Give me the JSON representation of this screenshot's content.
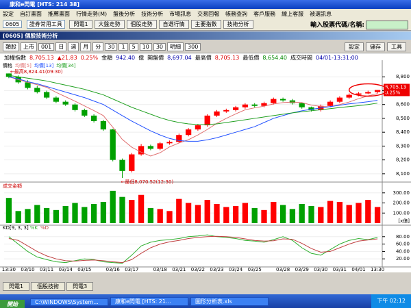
{
  "window": {
    "title": "康和e閃電 [HTS: 214 38]"
  },
  "menu": [
    "設定",
    "自訂畫面",
    "推薦畫面",
    "行情走勢(M)",
    "盤後分析",
    "技術分析",
    "市場訊息",
    "交易回報",
    "帳務查詢",
    "客戶服務",
    "線上客服",
    "被選訊息"
  ],
  "toolbar": {
    "stock_no": "0605",
    "tool_group": "證券常用工具",
    "buttons": [
      "閃電1",
      "大盤走勢",
      "個股走勢",
      "自選行情",
      "主要指數",
      "技術分析"
    ],
    "search_label": "輸入股票代碼/名稱:"
  },
  "panel": {
    "title": "[0605] 個股技術分析",
    "controls": [
      "類股",
      "上市",
      "001",
      "日",
      "週",
      "月",
      "分",
      "30",
      "1",
      "5",
      "10",
      "30",
      "明細",
      "300"
    ],
    "right_buttons": [
      "設定",
      "儲存",
      "工具"
    ]
  },
  "quote": {
    "name": "加權指數",
    "price": "8,705.13",
    "change": "▲21.83",
    "change_pct": "0.25%",
    "amount_label": "金額",
    "amount": "942.40",
    "amount_unit": "億",
    "open_label": "開盤價",
    "open": "8,697.04",
    "high_label": "最高價",
    "high": "8,705.13",
    "low_label": "最低價",
    "low": "8,654.40",
    "time_label": "成交時間",
    "time": "04/01-13:31:00"
  },
  "chart_data": [
    {
      "type": "candlestick",
      "legend_label": "價格",
      "up_color": "#ff0000",
      "down_color": "#00a000",
      "categories": [
        "13:30",
        null,
        "03/10",
        null,
        "03/11",
        null,
        "03/14",
        null,
        "03/15",
        null,
        null,
        "03/16",
        null,
        "03/17",
        null,
        null,
        "03/18",
        null,
        "03/21",
        null,
        "03/22",
        null,
        "03/23",
        null,
        "03/24",
        null,
        "03/25",
        null,
        null,
        "03/28",
        null,
        "03/29",
        null,
        "03/30",
        null,
        "03/31",
        null,
        "04/01",
        null,
        "13:30"
      ],
      "open": [
        8824,
        8800,
        8760,
        8720,
        8690,
        8650,
        8620,
        8600,
        8560,
        8520,
        8480,
        8420,
        8200,
        8120,
        8240,
        8300,
        8280,
        8320,
        8330,
        8380,
        8420,
        8450,
        8520,
        8550,
        8560,
        8580,
        8600,
        8590,
        8610,
        8640,
        8630,
        8610,
        8580,
        8560,
        8590,
        8620,
        8650,
        8670,
        8680,
        8690
      ],
      "high": [
        8824,
        8810,
        8775,
        8735,
        8700,
        8660,
        8630,
        8610,
        8570,
        8530,
        8490,
        8425,
        8210,
        8250,
        8315,
        8310,
        8330,
        8340,
        8390,
        8430,
        8460,
        8530,
        8560,
        8570,
        8590,
        8610,
        8610,
        8620,
        8650,
        8650,
        8640,
        8615,
        8585,
        8600,
        8630,
        8660,
        8680,
        8690,
        8700,
        8705
      ],
      "low": [
        8790,
        8750,
        8710,
        8680,
        8640,
        8610,
        8590,
        8550,
        8510,
        8470,
        8410,
        8190,
        8070,
        8110,
        8230,
        8270,
        8270,
        8310,
        8320,
        8370,
        8410,
        8440,
        8510,
        8540,
        8550,
        8570,
        8580,
        8580,
        8600,
        8620,
        8600,
        8570,
        8550,
        8550,
        8580,
        8610,
        8640,
        8660,
        8675,
        8680
      ],
      "close": [
        8800,
        8760,
        8720,
        8690,
        8650,
        8620,
        8600,
        8560,
        8520,
        8480,
        8420,
        8200,
        8120,
        8240,
        8300,
        8280,
        8320,
        8330,
        8380,
        8420,
        8450,
        8520,
        8550,
        8560,
        8580,
        8600,
        8590,
        8610,
        8640,
        8630,
        8610,
        8580,
        8560,
        8590,
        8620,
        8650,
        8670,
        8680,
        8690,
        8705
      ],
      "series": [
        {
          "name": "均價[5]",
          "color": "#e07070",
          "values": [
            8800,
            8780,
            8760,
            8743,
            8724,
            8688,
            8656,
            8624,
            8590,
            8556,
            8520,
            8436,
            8348,
            8292,
            8256,
            8228,
            8252,
            8294,
            8322,
            8346,
            8380,
            8420,
            8464,
            8500,
            8532,
            8562,
            8576,
            8588,
            8604,
            8614,
            8618,
            8614,
            8596,
            8586,
            8584,
            8600,
            8618,
            8642,
            8662,
            8679
          ]
        },
        {
          "name": "均價[13]",
          "color": "#2050ff",
          "values": [
            8800,
            8785,
            8765,
            8750,
            8730,
            8710,
            8690,
            8670,
            8650,
            8625,
            8600,
            8560,
            8520,
            8480,
            8445,
            8410,
            8380,
            8355,
            8340,
            8335,
            8335,
            8345,
            8360,
            8380,
            8400,
            8420,
            8440,
            8470,
            8500,
            8520,
            8540,
            8555,
            8565,
            8575,
            8585,
            8595,
            8605,
            8612,
            8620,
            8630
          ]
        },
        {
          "name": "均價[34]",
          "color": "#20a020",
          "values": [
            8810,
            8800,
            8790,
            8780,
            8770,
            8755,
            8740,
            8725,
            8710,
            8690,
            8670,
            8640,
            8610,
            8580,
            8555,
            8530,
            8505,
            8485,
            8470,
            8460,
            8455,
            8455,
            8460,
            8470,
            8480,
            8490,
            8500,
            8510,
            8520,
            8530,
            8540,
            8548,
            8555,
            8562,
            8570,
            8578,
            8585,
            8592,
            8600,
            8610
          ]
        }
      ],
      "ylim": [
        8050,
        8900
      ],
      "yticks": [
        {
          "value": 8800,
          "label": "8,800"
        },
        {
          "value": 8700,
          "label": "8,700"
        },
        {
          "value": 8600,
          "label": "8,600"
        },
        {
          "value": 8500,
          "label": "8,500"
        },
        {
          "value": 8400,
          "label": "8,400"
        },
        {
          "value": 8300,
          "label": "8,300"
        },
        {
          "value": 8200,
          "label": "8,200"
        },
        {
          "value": 8100,
          "label": "8,100"
        }
      ],
      "high_note": "←最高8,824.41(09:30)",
      "low_note": "←最低8,070.52(12:30)",
      "price_tag": "8,705.13",
      "price_tag_pct": "0.25%"
    },
    {
      "type": "bar",
      "title": "成交金額",
      "unit_label": "[x億]",
      "values": [
        250,
        120,
        140,
        180,
        150,
        130,
        170,
        200,
        160,
        190,
        210,
        320,
        260,
        230,
        280,
        150,
        140,
        120,
        240,
        200,
        180,
        230,
        190,
        160,
        170,
        200,
        150,
        130,
        210,
        180,
        140,
        190,
        170,
        160,
        220,
        210,
        180,
        200,
        230,
        160
      ],
      "ylim": [
        0,
        380
      ],
      "yticks": [
        {
          "value": 300,
          "label": "300.00"
        },
        {
          "value": 200,
          "label": "200.00"
        },
        {
          "value": 100,
          "label": "100.00"
        }
      ]
    },
    {
      "type": "line",
      "title": "KD[9, 3, 3]",
      "series": [
        {
          "name": "%K",
          "color": "#30b030",
          "values": [
            80,
            60,
            40,
            25,
            18,
            12,
            10,
            15,
            20,
            18,
            12,
            10,
            8,
            30,
            55,
            65,
            70,
            72,
            75,
            80,
            82,
            85,
            80,
            78,
            75,
            70,
            68,
            65,
            72,
            80,
            70,
            50,
            35,
            30,
            45,
            60,
            70,
            75,
            72,
            78
          ]
        },
        {
          "name": "%D",
          "color": "#c04040",
          "values": [
            75,
            70,
            55,
            40,
            28,
            20,
            15,
            14,
            16,
            17,
            15,
            12,
            10,
            18,
            35,
            50,
            60,
            66,
            70,
            75,
            78,
            80,
            81,
            80,
            78,
            74,
            70,
            68,
            69,
            74,
            73,
            62,
            48,
            38,
            40,
            50,
            60,
            68,
            71,
            74
          ]
        }
      ],
      "ylim": [
        0,
        100
      ],
      "yticks": [
        {
          "value": 80,
          "label": "80.00"
        },
        {
          "value": 60,
          "label": "60.00"
        },
        {
          "value": 40,
          "label": "40.00"
        },
        {
          "value": 20,
          "label": "20.00"
        }
      ]
    }
  ],
  "tabs": [
    "閃電1",
    "個股技術",
    "閃電3"
  ],
  "taskbar": {
    "start": "開始",
    "items": [
      "C:\\WINDOWS\\System...",
      "康和e閃電 [HTS: 21...",
      "圖形分析表.xls"
    ],
    "clock": "下午 02:12"
  }
}
